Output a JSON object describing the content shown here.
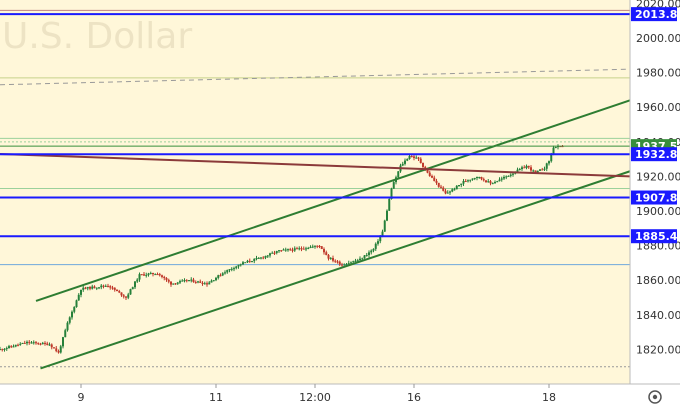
{
  "chart_data": {
    "type": "candlestick",
    "watermark": "U.S. Dollar",
    "y_axis": {
      "min": 1800,
      "max": 2022,
      "ticks": [
        2020,
        2000,
        1980,
        1960,
        1940,
        1920,
        1900,
        1880,
        1860,
        1840,
        1820
      ]
    },
    "y_tick_labels": [
      "2020.00",
      "2000.00",
      "1980.00",
      "1960.00",
      "1940.00",
      "1920.00",
      "1900.00",
      "1880.00",
      "1860.00",
      "1840.00",
      "1820.00"
    ],
    "x_axis": {
      "range": [
        0,
        140
      ],
      "ticks": [
        {
          "x": 18,
          "label": "9"
        },
        {
          "x": 48,
          "label": "11"
        },
        {
          "x": 70,
          "label": "12:00"
        },
        {
          "x": 92,
          "label": "16"
        },
        {
          "x": 122,
          "label": "18"
        }
      ]
    },
    "price_levels": [
      {
        "value": 2013.83,
        "label": "2013.83",
        "color": "#1a1aff",
        "width": 2
      },
      {
        "value": 1937.51,
        "label": "1937.51",
        "color": "#388e3c",
        "width": 1
      },
      {
        "value": 1932.86,
        "label": "1932.86",
        "color": "#1a1aff",
        "width": 2
      },
      {
        "value": 1907.81,
        "label": "1907.81",
        "color": "#1a1aff",
        "width": 2
      },
      {
        "value": 1885.44,
        "label": "1885.44",
        "color": "#1a1aff",
        "width": 2
      }
    ],
    "aux_levels": [
      {
        "value": 2016,
        "color": "#c08080",
        "width": 1,
        "dash": ""
      },
      {
        "value": 1977,
        "color": "#c8d28a",
        "width": 1,
        "dash": ""
      },
      {
        "value": 1942,
        "color": "#9bd19b",
        "width": 1,
        "dash": ""
      },
      {
        "value": 1940,
        "color": "#9bd19b",
        "width": 1,
        "dash": "2,2"
      },
      {
        "value": 1913,
        "color": "#9bd19b",
        "width": 1,
        "dash": ""
      },
      {
        "value": 1869,
        "color": "#6fa8dc",
        "width": 1,
        "dash": ""
      },
      {
        "value": 1810,
        "color": "#999999",
        "width": 1,
        "dash": "2,2"
      }
    ],
    "trend_lines": [
      {
        "name": "channel-upper",
        "from": [
          8,
          1848
        ],
        "to": [
          140,
          1964
        ],
        "color": "#2e7d32",
        "width": 2,
        "dash": ""
      },
      {
        "name": "channel-lower",
        "from": [
          9,
          1809
        ],
        "to": [
          140,
          1923
        ],
        "color": "#2e7d32",
        "width": 2,
        "dash": ""
      },
      {
        "name": "resistance-line",
        "from": [
          0,
          1933
        ],
        "to": [
          140,
          1920
        ],
        "color": "#8b3a3a",
        "width": 2,
        "dash": ""
      },
      {
        "name": "dashed-line",
        "from": [
          0,
          1973
        ],
        "to": [
          140,
          1982
        ],
        "color": "#999999",
        "width": 1,
        "dash": "5,4"
      }
    ],
    "candle_keyframes": [
      [
        0,
        1820
      ],
      [
        6,
        1824
      ],
      [
        11,
        1823
      ],
      [
        13,
        1818
      ],
      [
        15,
        1835
      ],
      [
        18,
        1855
      ],
      [
        24,
        1857
      ],
      [
        28,
        1850
      ],
      [
        31,
        1863
      ],
      [
        35,
        1864
      ],
      [
        38,
        1858
      ],
      [
        42,
        1860
      ],
      [
        46,
        1858
      ],
      [
        50,
        1865
      ],
      [
        54,
        1870
      ],
      [
        58,
        1873
      ],
      [
        62,
        1877
      ],
      [
        66,
        1878
      ],
      [
        71,
        1880
      ],
      [
        73,
        1873
      ],
      [
        76,
        1869
      ],
      [
        80,
        1872
      ],
      [
        83,
        1878
      ],
      [
        85,
        1888
      ],
      [
        87,
        1913
      ],
      [
        89,
        1926
      ],
      [
        91,
        1932
      ],
      [
        93,
        1930
      ],
      [
        95,
        1922
      ],
      [
        97,
        1916
      ],
      [
        99,
        1910
      ],
      [
        101,
        1913
      ],
      [
        103,
        1917
      ],
      [
        106,
        1920
      ],
      [
        109,
        1916
      ],
      [
        111,
        1918
      ],
      [
        114,
        1922
      ],
      [
        117,
        1926
      ],
      [
        119,
        1922
      ],
      [
        121,
        1925
      ],
      [
        122,
        1929
      ],
      [
        123,
        1937
      ],
      [
        125,
        1937
      ]
    ]
  }
}
